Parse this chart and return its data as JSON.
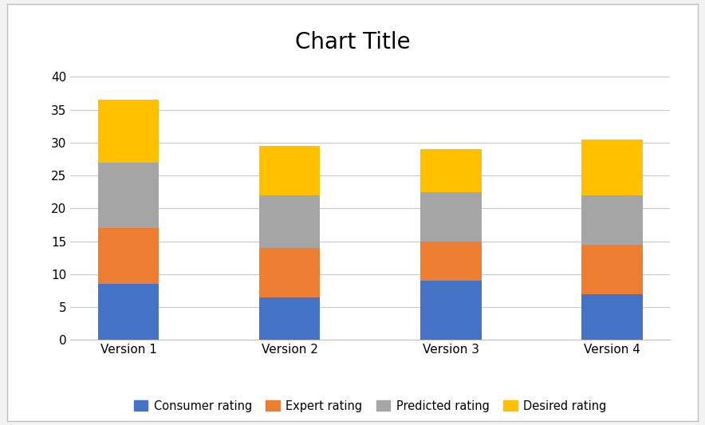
{
  "title": "Chart Title",
  "categories": [
    "Version 1",
    "Version 2",
    "Version 3",
    "Version 4"
  ],
  "series": {
    "Consumer rating": [
      8.5,
      6.5,
      9.0,
      7.0
    ],
    "Expert rating": [
      8.5,
      7.5,
      6.0,
      7.5
    ],
    "Predicted rating": [
      10.0,
      8.0,
      7.5,
      7.5
    ],
    "Desired rating": [
      9.5,
      7.5,
      6.5,
      8.5
    ]
  },
  "colors": {
    "Consumer rating": "#4472C4",
    "Expert rating": "#ED7D31",
    "Predicted rating": "#A5A5A5",
    "Desired rating": "#FFC000"
  },
  "ylim": [
    0,
    42
  ],
  "yticks": [
    0,
    5,
    10,
    15,
    20,
    25,
    30,
    35,
    40
  ],
  "title_fontsize": 20,
  "legend_fontsize": 10.5,
  "tick_fontsize": 11,
  "bar_width": 0.38,
  "background_color": "#FFFFFF",
  "plot_bg_color": "#FFFFFF",
  "grid_color": "#C8C8C8",
  "border_color": "#BFBFBF",
  "fig_outer_bg": "#F2F2F2"
}
